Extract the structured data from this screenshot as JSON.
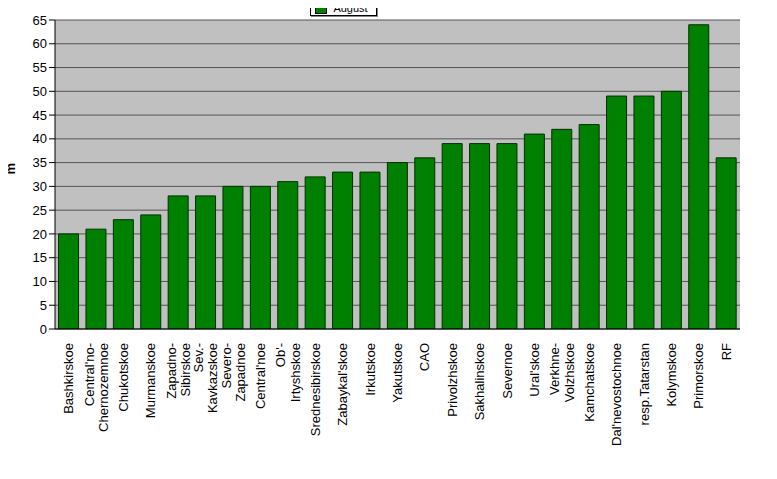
{
  "chart_data": {
    "type": "bar",
    "y_label": "m",
    "categories": [
      "Bashkirskoe",
      "Central'no-Chernozemnoe",
      "Chukotskoe",
      "Murmanskoe",
      "Zapadno-Sibirskoe",
      "Sev.-Kavkazskoe",
      "Severo-Zapadnoe",
      "Central'noe",
      "Ob'-Irtyshskoe",
      "Srednesibirskoe",
      "Zabaykal'skoe",
      "Irkutskoe",
      "Yakutskoe",
      "CAO",
      "Privolzhskoe",
      "Sakhalinskoe",
      "Severnoe",
      "Ural'skoe",
      "Verkhne-Volzhskoe",
      "Kamchatskoe",
      "Dal'nevostochnoe",
      "resp.Tatarstan",
      "Kolymskoe",
      "Primorskoe",
      "RF"
    ],
    "series": [
      {
        "name": "August",
        "color": "#008000",
        "values": [
          20,
          21,
          23,
          24,
          28,
          28,
          30,
          30,
          31,
          32,
          33,
          33,
          35,
          36,
          39,
          39,
          39,
          41,
          42,
          43,
          49,
          49,
          50,
          64,
          36
        ]
      }
    ],
    "ylim": [
      0,
      65
    ],
    "yticks": [
      0,
      5,
      10,
      15,
      20,
      25,
      30,
      35,
      40,
      45,
      50,
      55,
      60,
      65
    ],
    "grid": true,
    "legend": "top"
  }
}
